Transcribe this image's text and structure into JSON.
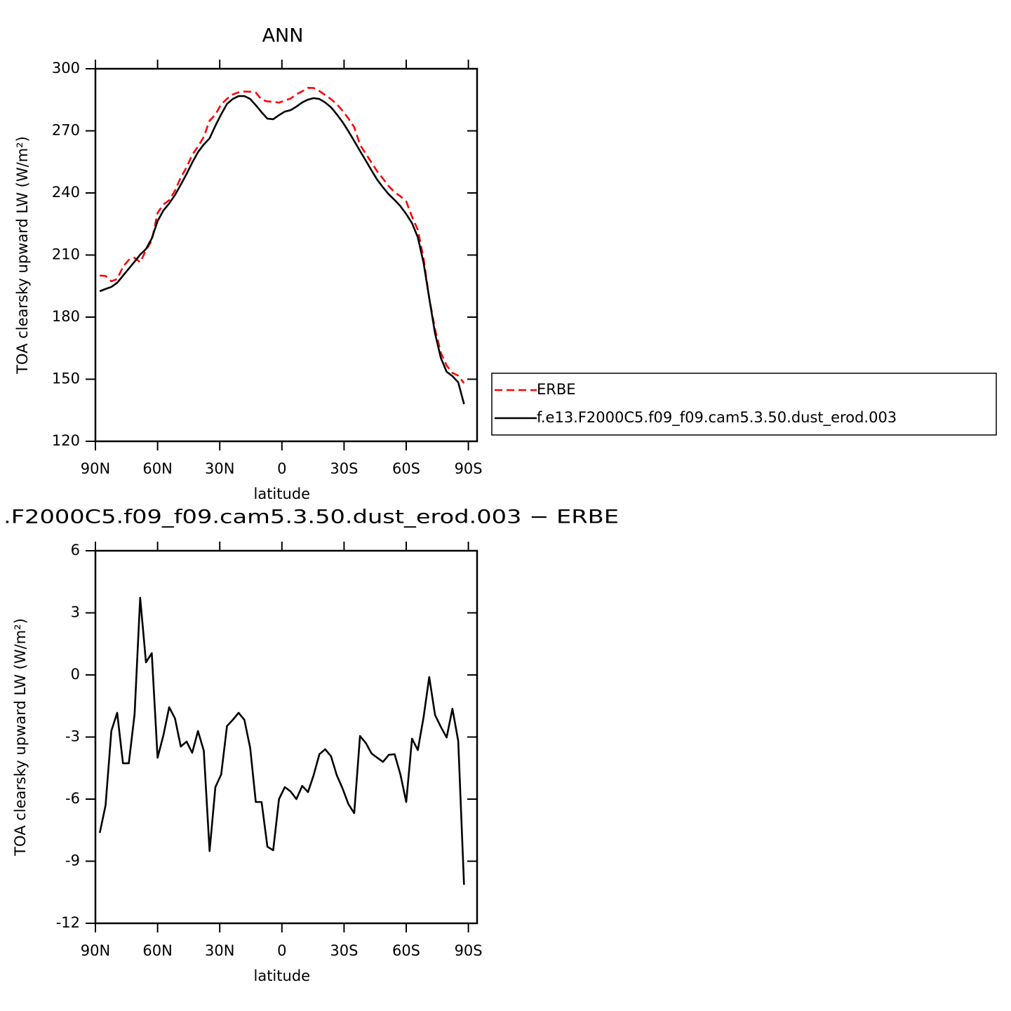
{
  "chart_data": [
    {
      "type": "line",
      "title": "ANN",
      "xlabel": "latitude",
      "ylabel": "TOA clearsky upward LW (W/m²)",
      "x": [
        87.9,
        85.1,
        82.3,
        79.5,
        76.7,
        73.9,
        71.1,
        68.4,
        65.6,
        62.8,
        60,
        57.2,
        54.4,
        51.6,
        48.8,
        46,
        43.3,
        40.5,
        37.7,
        34.9,
        32.1,
        29.3,
        26.5,
        23.7,
        20.9,
        18.1,
        15.3,
        12.6,
        9.8,
        7,
        4.2,
        1.4,
        -1.4,
        -4.2,
        -7,
        -9.8,
        -12.6,
        -15.3,
        -18.1,
        -20.9,
        -23.7,
        -26.5,
        -29.3,
        -32.1,
        -34.9,
        -37.7,
        -40.5,
        -43.3,
        -46,
        -48.8,
        -51.6,
        -54.4,
        -57.2,
        -60,
        -62.8,
        -65.6,
        -68.4,
        -71.1,
        -73.9,
        -76.7,
        -79.5,
        -82.3,
        -85.1,
        -87.9
      ],
      "series": [
        {
          "name": "ERBE",
          "color": "#ff0000",
          "linestyle": "dashed",
          "values": [
            200.1,
            199.9,
            197.3,
            198.4,
            204.3,
            207.7,
            208.7,
            206.5,
            212.3,
            217.0,
            230.4,
            234.4,
            236.5,
            241.1,
            247.5,
            252.4,
            258.4,
            262.4,
            267.1,
            274.9,
            277.9,
            282.8,
            285.5,
            287.6,
            288.6,
            289.0,
            288.9,
            288.5,
            285.1,
            284.2,
            284.1,
            283.6,
            284.7,
            285.6,
            287.7,
            289.1,
            290.8,
            290.7,
            289.2,
            287.3,
            285.3,
            282.9,
            279.7,
            276.0,
            271.8,
            263.3,
            258.9,
            254.6,
            250.4,
            246.9,
            243.2,
            240.4,
            238.4,
            235.9,
            228.5,
            222.2,
            208.1,
            189.3,
            174.1,
            162.8,
            156.6,
            153.1,
            151.7,
            148.1
          ]
        },
        {
          "name": "f.e13.F2000C5.f09_f09.cam5.3.50.dust_erod.003",
          "color": "#000000",
          "linestyle": "solid",
          "values": [
            192.5,
            193.6,
            194.6,
            196.6,
            200,
            203.4,
            206.8,
            210.2,
            212.9,
            218,
            226.4,
            231.5,
            234.9,
            239,
            244,
            249.2,
            254.6,
            259.7,
            263.4,
            266.4,
            272.5,
            278,
            283,
            285.4,
            286.8,
            286.8,
            285.4,
            282.4,
            279,
            275.9,
            275.6,
            277.6,
            279.3,
            280,
            281.7,
            283.7,
            285.1,
            285.8,
            285.4,
            283.7,
            281.4,
            278,
            274.2,
            269.8,
            265.1,
            260.3,
            255.6,
            250.8,
            246.4,
            242.7,
            239.3,
            236.6,
            233.6,
            229.8,
            225.4,
            218.6,
            206.1,
            189.2,
            172.2,
            160.3,
            153.6,
            151.5,
            148.5,
            138
          ]
        }
      ],
      "xlim": [
        90,
        -94.2
      ],
      "xticks": [
        {
          "value": 90,
          "label": "90N"
        },
        {
          "value": 60,
          "label": "60N"
        },
        {
          "value": 30,
          "label": "30N"
        },
        0,
        {
          "value": -30,
          "label": "30S"
        },
        {
          "value": -60,
          "label": "60S"
        },
        {
          "value": -90,
          "label": "90S"
        }
      ],
      "ylim": [
        120,
        300
      ],
      "yticks": [
        120,
        150,
        180,
        210,
        240,
        270,
        300
      ],
      "grid": false,
      "legend": "right"
    },
    {
      "type": "line",
      "title": ".F2000C5.f09_f09.cam5.3.50.dust_erod.003 − ERBE",
      "xlabel": "latitude",
      "ylabel": "TOA clearsky upward LW (W/m²)",
      "x": [
        87.9,
        85.1,
        82.3,
        79.5,
        76.7,
        73.9,
        71.1,
        68.4,
        65.6,
        62.8,
        60,
        57.2,
        54.4,
        51.6,
        48.8,
        46,
        43.3,
        40.5,
        37.7,
        34.9,
        32.1,
        29.3,
        26.5,
        23.7,
        20.9,
        18.1,
        15.3,
        12.6,
        9.8,
        7,
        4.2,
        1.4,
        -1.4,
        -4.2,
        -7,
        -9.8,
        -12.6,
        -15.3,
        -18.1,
        -20.9,
        -23.7,
        -26.5,
        -29.3,
        -32.1,
        -34.9,
        -37.7,
        -40.5,
        -43.3,
        -46,
        -48.8,
        -51.6,
        -54.4,
        -57.2,
        -60,
        -62.8,
        -65.6,
        -68.4,
        -71.1,
        -73.9,
        -76.7,
        -79.5,
        -82.3,
        -85.1,
        -87.9
      ],
      "values": [
        -7.63,
        -6.3,
        -2.7,
        -1.83,
        -4.27,
        -4.27,
        -1.9,
        3.73,
        0.61,
        1.05,
        -4.0,
        -2.92,
        -1.56,
        -2.1,
        -3.46,
        -3.22,
        -3.76,
        -2.71,
        -3.66,
        -8.51,
        -5.42,
        -4.81,
        -2.47,
        -2.17,
        -1.83,
        -2.17,
        -3.53,
        -6.14,
        -6.14,
        -8.3,
        -8.47,
        -6.0,
        -5.42,
        -5.63,
        -6.0,
        -5.36,
        -5.66,
        -4.85,
        -3.83,
        -3.59,
        -3.93,
        -4.85,
        -5.49,
        -6.24,
        -6.68,
        -2.95,
        -3.29,
        -3.8,
        -4.0,
        -4.2,
        -3.86,
        -3.83,
        -4.81,
        -6.14,
        -3.08,
        -3.63,
        -2.03,
        -0.1,
        -1.93,
        -2.51,
        -3.02,
        -1.63,
        -3.19,
        -10.14
      ],
      "color": "#000000",
      "linestyle": "solid",
      "xlim": [
        90,
        -94.2
      ],
      "xticks": [
        {
          "value": 90,
          "label": "90N"
        },
        {
          "value": 60,
          "label": "60N"
        },
        {
          "value": 30,
          "label": "30N"
        },
        0,
        {
          "value": -30,
          "label": "30S"
        },
        {
          "value": -60,
          "label": "60S"
        },
        {
          "value": -90,
          "label": "90S"
        }
      ],
      "ylim": [
        -12,
        6
      ],
      "yticks": [
        -12,
        -9,
        -6,
        -3,
        0,
        3,
        6
      ],
      "grid": false
    }
  ]
}
